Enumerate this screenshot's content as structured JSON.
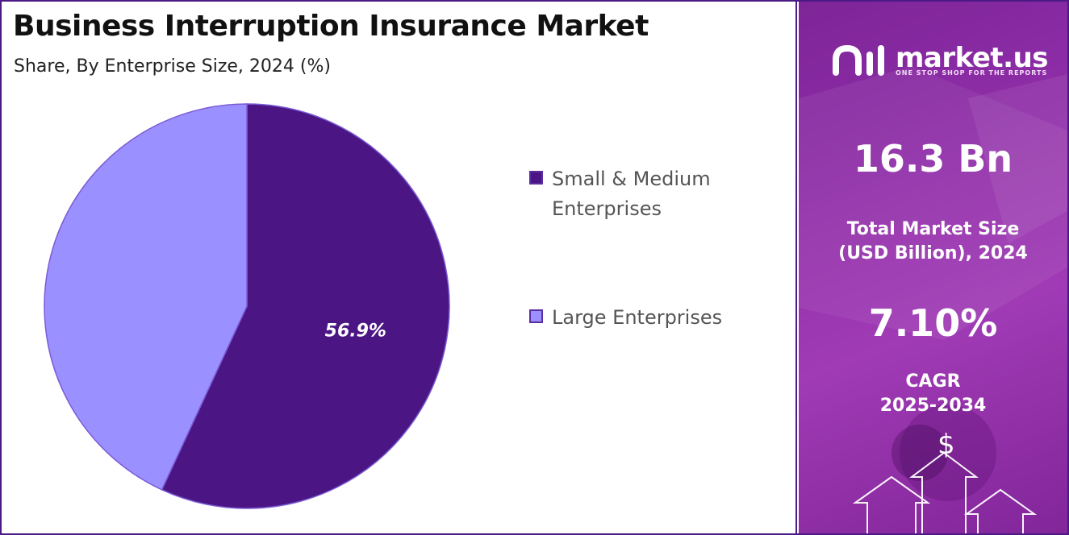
{
  "title": "Business Interruption Insurance Market",
  "subtitle": "Share, By Enterprise Size, 2024 (%)",
  "chart_data": {
    "type": "pie",
    "title": "Business Interruption Insurance Market",
    "subtitle": "Share, By Enterprise Size, 2024 (%)",
    "categories": [
      "Small & Medium Enterprises",
      "Large Enterprises"
    ],
    "values": [
      56.9,
      43.1
    ],
    "data_labels": [
      "56.9%",
      ""
    ],
    "colors": [
      "#4b1684",
      "#9b90ff"
    ],
    "legend_position": "right"
  },
  "legend": [
    {
      "label": "Small & Medium\nEnterprises",
      "color": "#4b1684"
    },
    {
      "label": "Large Enterprises",
      "color": "#9b90ff"
    }
  ],
  "sidebar": {
    "logo_text": "market.us",
    "logo_tagline": "ONE STOP SHOP FOR THE REPORTS",
    "market_size_value": "16.3 Bn",
    "market_size_label": "Total Market Size\n(USD Billion), 2024",
    "cagr_value": "7.10%",
    "cagr_label": "CAGR\n2025-2034",
    "dollar_symbol": "$"
  }
}
